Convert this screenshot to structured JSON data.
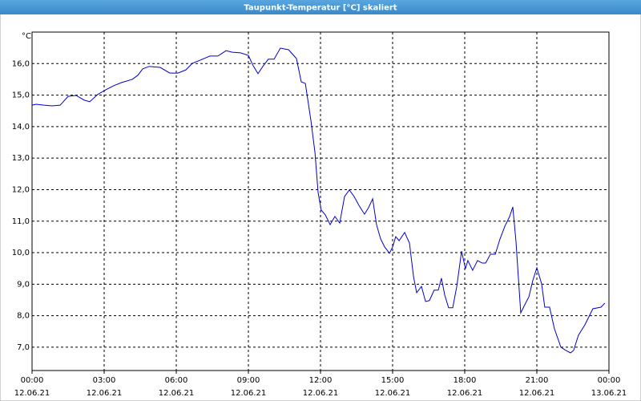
{
  "chart_data": {
    "type": "line",
    "title": "Taupunkt-Temperatur [°C] skaliert",
    "y_label": "°C",
    "grid": true,
    "xlim": [
      0,
      24
    ],
    "xticks": [
      {
        "value": 0,
        "label": "00:00"
      },
      {
        "value": 3,
        "label": "03:00"
      },
      {
        "value": 6,
        "label": "06:00"
      },
      {
        "value": 9,
        "label": "09:00"
      },
      {
        "value": 12,
        "label": "12:00"
      },
      {
        "value": 15,
        "label": "15:00"
      },
      {
        "value": 18,
        "label": "18:00"
      },
      {
        "value": 21,
        "label": "21:00"
      },
      {
        "value": 24,
        "label": "00:00"
      }
    ],
    "xtick_dates": [
      "12.06.21",
      "12.06.21",
      "12.06.21",
      "12.06.21",
      "12.06.21",
      "12.06.21",
      "12.06.21",
      "12.06.21",
      "13.06.21"
    ],
    "ylim": [
      6.26,
      17
    ],
    "yticks": [
      {
        "value": 7,
        "label": "7,0"
      },
      {
        "value": 8,
        "label": "8,0"
      },
      {
        "value": 9,
        "label": "9,0"
      },
      {
        "value": 10,
        "label": "10,0"
      },
      {
        "value": 11,
        "label": "11,0"
      },
      {
        "value": 12,
        "label": "12,0"
      },
      {
        "value": 13,
        "label": "13,0"
      },
      {
        "value": 14,
        "label": "14,0"
      },
      {
        "value": 15,
        "label": "15,0"
      },
      {
        "value": 16,
        "label": "16,0"
      }
    ],
    "color": "#0000cc",
    "x": [
      0,
      0.17,
      0.5,
      0.83,
      1.17,
      1.5,
      1.83,
      2.17,
      2.4,
      2.73,
      3.07,
      3.4,
      3.73,
      4.17,
      4.4,
      4.6,
      4.87,
      5.33,
      5.73,
      6.07,
      6.4,
      6.67,
      7.0,
      7.4,
      7.73,
      8.07,
      8.33,
      8.67,
      9.0,
      9.2,
      9.4,
      9.6,
      9.83,
      10.07,
      10.33,
      10.67,
      11.0,
      11.2,
      11.37,
      11.6,
      11.77,
      11.9,
      12.03,
      12.2,
      12.4,
      12.6,
      12.8,
      13.0,
      13.2,
      13.4,
      13.6,
      13.83,
      14.0,
      14.17,
      14.33,
      14.5,
      14.67,
      14.87,
      15.0,
      15.13,
      15.27,
      15.5,
      15.7,
      15.87,
      16.0,
      16.2,
      16.37,
      16.53,
      16.73,
      16.9,
      17.03,
      17.17,
      17.33,
      17.5,
      17.67,
      17.87,
      18.03,
      18.13,
      18.33,
      18.53,
      18.73,
      18.87,
      19.07,
      19.27,
      19.47,
      19.67,
      19.87,
      20.0,
      20.13,
      20.33,
      20.5,
      20.67,
      20.83,
      21.0,
      21.2,
      21.33,
      21.53,
      21.73,
      22.0,
      22.2,
      22.4,
      22.53,
      22.73,
      23.0,
      23.33,
      23.67,
      23.83
    ],
    "values": [
      14.68,
      14.71,
      14.68,
      14.66,
      14.68,
      14.96,
      14.99,
      14.84,
      14.79,
      15.02,
      15.17,
      15.3,
      15.4,
      15.5,
      15.63,
      15.83,
      15.91,
      15.88,
      15.7,
      15.7,
      15.8,
      16.01,
      16.11,
      16.24,
      16.24,
      16.41,
      16.36,
      16.34,
      16.26,
      15.93,
      15.68,
      15.91,
      16.14,
      16.14,
      16.49,
      16.44,
      16.16,
      15.42,
      15.37,
      14.2,
      13.18,
      11.91,
      11.35,
      11.2,
      10.89,
      11.15,
      10.94,
      11.78,
      11.99,
      11.78,
      11.5,
      11.22,
      11.43,
      11.71,
      10.89,
      10.44,
      10.18,
      9.98,
      10.18,
      10.51,
      10.38,
      10.64,
      10.31,
      9.24,
      8.73,
      8.93,
      8.45,
      8.48,
      8.81,
      8.81,
      9.19,
      8.65,
      8.25,
      8.25,
      8.93,
      10.05,
      9.49,
      9.75,
      9.44,
      9.75,
      9.67,
      9.67,
      9.95,
      9.95,
      10.44,
      10.84,
      11.15,
      11.45,
      10.38,
      8.09,
      8.35,
      8.6,
      9.11,
      9.52,
      9.01,
      8.27,
      8.27,
      7.59,
      7.0,
      6.9,
      6.82,
      6.9,
      7.38,
      7.71,
      8.22,
      8.27,
      8.4
    ]
  }
}
